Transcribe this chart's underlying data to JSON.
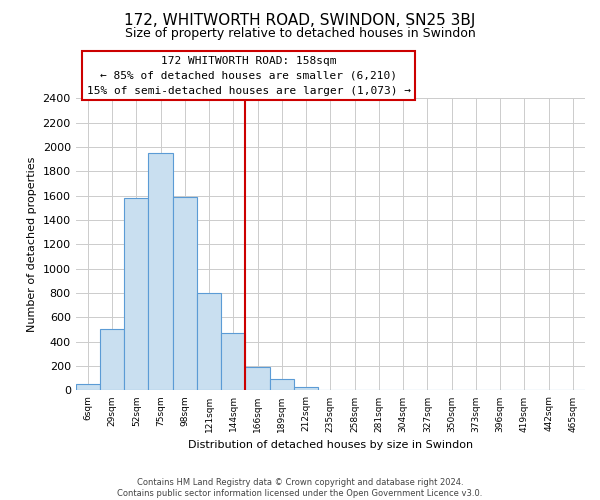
{
  "title": "172, WHITWORTH ROAD, SWINDON, SN25 3BJ",
  "subtitle": "Size of property relative to detached houses in Swindon",
  "xlabel": "Distribution of detached houses by size in Swindon",
  "ylabel": "Number of detached properties",
  "bar_labels": [
    "6sqm",
    "29sqm",
    "52sqm",
    "75sqm",
    "98sqm",
    "121sqm",
    "144sqm",
    "166sqm",
    "189sqm",
    "212sqm",
    "235sqm",
    "258sqm",
    "281sqm",
    "304sqm",
    "327sqm",
    "350sqm",
    "373sqm",
    "396sqm",
    "419sqm",
    "442sqm",
    "465sqm"
  ],
  "bar_values": [
    55,
    505,
    1585,
    1950,
    1590,
    800,
    470,
    190,
    95,
    30,
    5,
    0,
    0,
    0,
    0,
    0,
    0,
    0,
    0,
    0,
    0
  ],
  "bar_color": "#c9dff0",
  "bar_edge_color": "#5b9bd5",
  "vline_index": 7,
  "vline_color": "#cc0000",
  "ylim": [
    0,
    2400
  ],
  "yticks": [
    0,
    200,
    400,
    600,
    800,
    1000,
    1200,
    1400,
    1600,
    1800,
    2000,
    2200,
    2400
  ],
  "annotation_title": "172 WHITWORTH ROAD: 158sqm",
  "annotation_line1": "← 85% of detached houses are smaller (6,210)",
  "annotation_line2": "15% of semi-detached houses are larger (1,073) →",
  "annotation_box_color": "#ffffff",
  "annotation_box_edge": "#cc0000",
  "footer_line1": "Contains HM Land Registry data © Crown copyright and database right 2024.",
  "footer_line2": "Contains public sector information licensed under the Open Government Licence v3.0.",
  "background_color": "#ffffff",
  "grid_color": "#cccccc"
}
